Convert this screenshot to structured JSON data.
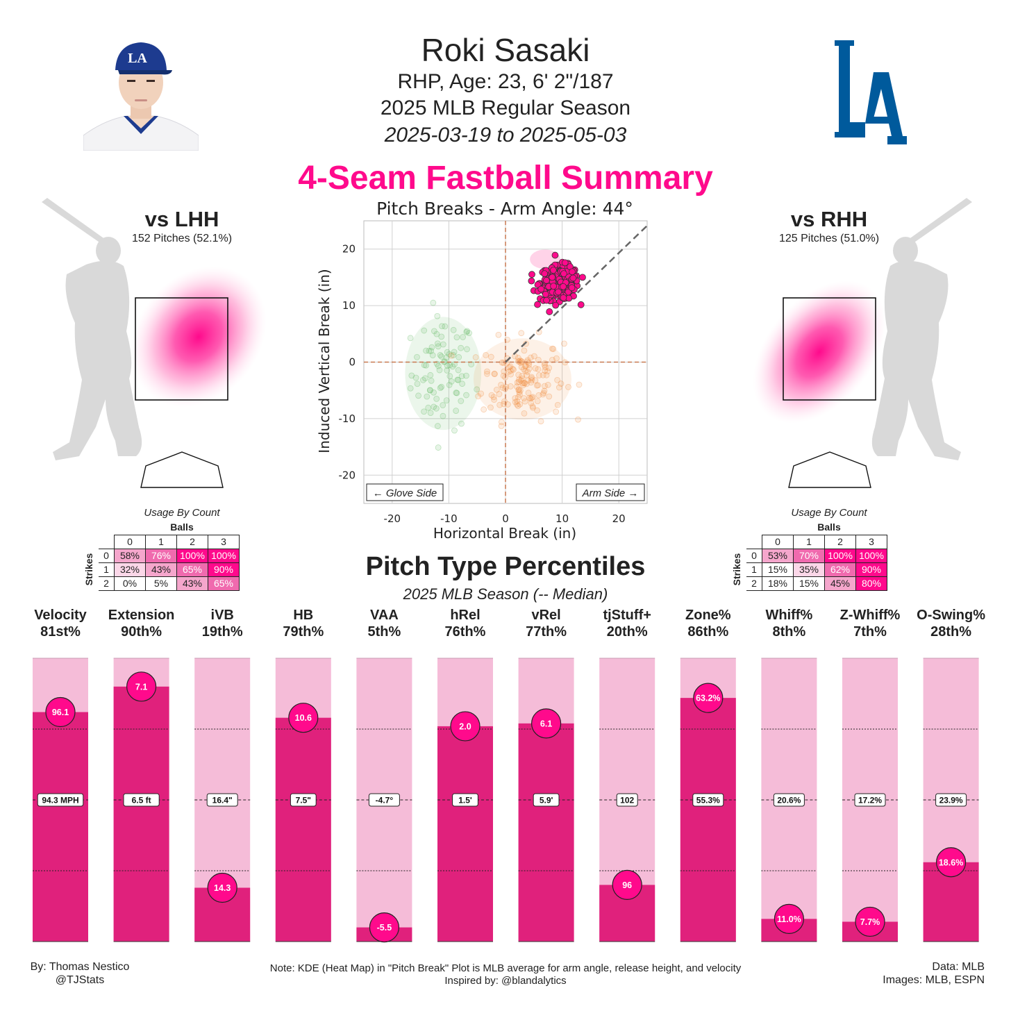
{
  "header": {
    "name": "Roki Sasaki",
    "bio": "RHP, Age: 23, 6' 2\"/187",
    "season": "2025 MLB Regular Season",
    "date_range": "2025-03-19 to 2025-05-03",
    "summary_title": "4-Seam Fastball Summary",
    "team_logo_text": "LA"
  },
  "colors": {
    "accent": "#ff0a8c",
    "bar_dark": "#e0217c",
    "bar_light": "#f5bcd8",
    "logo_blue": "#005a9c",
    "cap_blue": "#1d3b8f"
  },
  "vs_lhh": {
    "title": "vs LHH",
    "subtitle": "152 Pitches (52.1%)",
    "usage_title": "Usage By Count",
    "balls_label": "Balls",
    "strikes_label": "Strikes",
    "balls": [
      "0",
      "1",
      "2",
      "3"
    ],
    "rows": [
      {
        "strikes": "0",
        "cells": [
          "58%",
          "76%",
          "100%",
          "100%"
        ],
        "values": [
          58,
          76,
          100,
          100
        ]
      },
      {
        "strikes": "1",
        "cells": [
          "32%",
          "43%",
          "65%",
          "90%"
        ],
        "values": [
          32,
          43,
          65,
          90
        ]
      },
      {
        "strikes": "2",
        "cells": [
          "0%",
          "5%",
          "43%",
          "65%"
        ],
        "values": [
          0,
          5,
          43,
          65
        ]
      }
    ]
  },
  "vs_rhh": {
    "title": "vs RHH",
    "subtitle": "125 Pitches (51.0%)",
    "usage_title": "Usage By Count",
    "balls_label": "Balls",
    "strikes_label": "Strikes",
    "balls": [
      "0",
      "1",
      "2",
      "3"
    ],
    "rows": [
      {
        "strikes": "0",
        "cells": [
          "53%",
          "70%",
          "100%",
          "100%"
        ],
        "values": [
          53,
          70,
          100,
          100
        ]
      },
      {
        "strikes": "1",
        "cells": [
          "15%",
          "35%",
          "62%",
          "90%"
        ],
        "values": [
          15,
          35,
          62,
          90
        ]
      },
      {
        "strikes": "2",
        "cells": [
          "18%",
          "15%",
          "45%",
          "80%"
        ],
        "values": [
          18,
          15,
          45,
          80
        ]
      }
    ]
  },
  "percentiles": {
    "title": "Pitch Type Percentiles",
    "subtitle": "2025 MLB Season (-- Median)"
  },
  "chart_data": [
    {
      "type": "scatter",
      "title": "Pitch Breaks - Arm Angle: 44°",
      "xlabel": "Horizontal Break (in)",
      "ylabel": "Induced Vertical Break (in)",
      "xlim": [
        -25,
        25
      ],
      "ylim": [
        -25,
        25
      ],
      "xticks": [
        -20,
        -10,
        0,
        10,
        20
      ],
      "yticks": [
        -20,
        -10,
        0,
        10,
        20
      ],
      "grid": true,
      "arm_angle_deg": 44,
      "annotations": [
        "← Glove Side",
        "Arm Side →"
      ],
      "series": [
        {
          "color": "#ff0a8c",
          "center": [
            9.5,
            14
          ],
          "spread": [
            1.7,
            1.5
          ],
          "count": 277
        },
        {
          "kind": "kde",
          "color": "#5cb85c",
          "center": [
            -11,
            -2
          ],
          "spread": [
            2.8,
            5.0
          ],
          "count": 90
        },
        {
          "kind": "kde",
          "color": "#f08a3c",
          "center": [
            3,
            -3
          ],
          "spread": [
            3.6,
            3.6
          ],
          "count": 150
        }
      ]
    },
    {
      "type": "bar",
      "categories": [
        "Velocity",
        "Extension",
        "iVB",
        "HB",
        "VAA",
        "hRel",
        "vRel",
        "tjStuff+",
        "Zone%",
        "Whiff%",
        "Z-Whiff%",
        "O-Swing%"
      ],
      "percentile_labels": [
        "81st%",
        "90th%",
        "19th%",
        "79th%",
        "5th%",
        "76th%",
        "77th%",
        "20th%",
        "86th%",
        "8th%",
        "7th%",
        "28th%"
      ],
      "percentiles": [
        81,
        90,
        19,
        79,
        5,
        76,
        77,
        20,
        86,
        8,
        7,
        28
      ],
      "value_labels": [
        "96.1",
        "7.1",
        "14.3",
        "10.6",
        "-5.5",
        "2.0",
        "6.1",
        "96",
        "63.2%",
        "11.0%",
        "7.7%",
        "18.6%"
      ],
      "median_labels": [
        "94.3 MPH",
        "6.5 ft",
        "16.4\"",
        "7.5\"",
        "-4.7°",
        "1.5'",
        "5.9'",
        "102",
        "55.3%",
        "20.6%",
        "17.2%",
        "23.9%"
      ],
      "ylim": [
        0,
        100
      ]
    }
  ],
  "footer": {
    "author": "By: Thomas Nestico",
    "handle": "@TJStats",
    "note": "Note: KDE (Heat Map) in \"Pitch Break\" Plot is MLB average for arm angle, release height, and velocity",
    "inspired": "Inspired by: @blandalytics",
    "data_source": "Data: MLB",
    "images_source": "Images: MLB, ESPN"
  }
}
